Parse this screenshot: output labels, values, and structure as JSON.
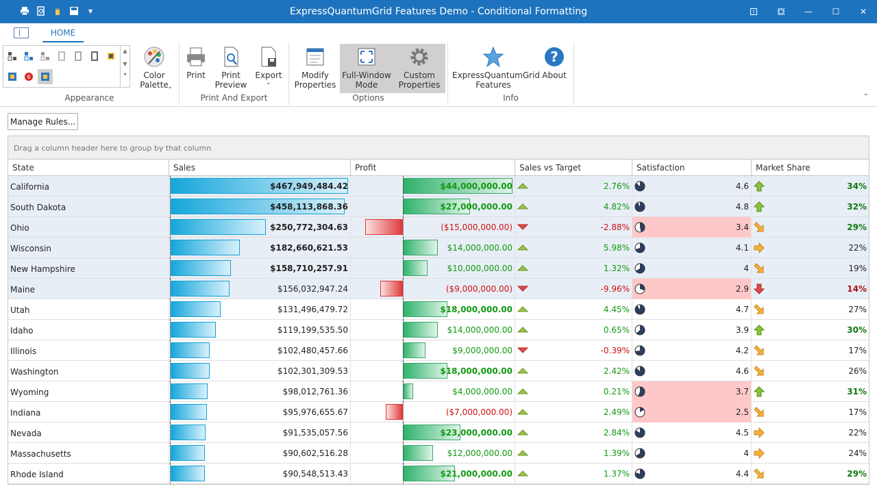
{
  "window": {
    "title": "ExpressQuantumGrid Features Demo -  Conditional Formatting"
  },
  "ribbon": {
    "tab_home": "HOME",
    "groups": {
      "appearance": "Appearance",
      "print_export": "Print And Export",
      "options": "Options",
      "info": "Info"
    },
    "buttons": {
      "color_palette": "Color\nPalette",
      "print": "Print",
      "print_preview": "Print\nPreview",
      "export": "Export",
      "modify_properties": "Modify\nProperties",
      "full_window_mode": "Full-Window\nMode",
      "custom_properties": "Custom\nProperties",
      "eqg_features": "ExpressQuantumGrid\nFeatures",
      "about": "About"
    }
  },
  "manage_rules_label": "Manage Rules...",
  "grid": {
    "group_panel_text": "Drag a column header here to group by that column",
    "columns": [
      "State",
      "Sales",
      "Profit",
      "Sales vs Target",
      "Satisfaction",
      "Market Share"
    ],
    "rows": [
      {
        "state": "California",
        "sales": "$467,949,484.42",
        "sales_num": 467949484.42,
        "sales_bold": true,
        "profit": "$44,000,000.00",
        "profit_num": 44000000,
        "profit_bold": true,
        "svt": "2.76%",
        "svt_dir": "up",
        "sat": "4.6",
        "sat_num": 4.6,
        "sat_bad": false,
        "ms": "34%",
        "ms_icon": "up",
        "ms_style": "green",
        "highlight": true
      },
      {
        "state": "South Dakota",
        "sales": "$458,113,868.36",
        "sales_num": 458113868.36,
        "sales_bold": true,
        "profit": "$27,000,000.00",
        "profit_num": 27000000,
        "profit_bold": true,
        "svt": "4.82%",
        "svt_dir": "up",
        "sat": "4.8",
        "sat_num": 4.8,
        "sat_bad": false,
        "ms": "32%",
        "ms_icon": "up",
        "ms_style": "green",
        "highlight": true
      },
      {
        "state": "Ohio",
        "sales": "$250,772,304.63",
        "sales_num": 250772304.63,
        "sales_bold": true,
        "profit": "($15,000,000.00)",
        "profit_num": -15000000,
        "profit_bold": false,
        "svt": "-2.88%",
        "svt_dir": "down",
        "sat": "3.4",
        "sat_num": 3.4,
        "sat_bad": true,
        "ms": "29%",
        "ms_icon": "downright",
        "ms_style": "green",
        "highlight": true
      },
      {
        "state": "Wisconsin",
        "sales": "$182,660,621.53",
        "sales_num": 182660621.53,
        "sales_bold": true,
        "profit": "$14,000,000.00",
        "profit_num": 14000000,
        "profit_bold": false,
        "svt": "5.98%",
        "svt_dir": "up",
        "sat": "4.1",
        "sat_num": 4.1,
        "sat_bad": false,
        "ms": "22%",
        "ms_icon": "right",
        "ms_style": "normal",
        "highlight": true
      },
      {
        "state": "New Hampshire",
        "sales": "$158,710,257.91",
        "sales_num": 158710257.91,
        "sales_bold": true,
        "profit": "$10,000,000.00",
        "profit_num": 10000000,
        "profit_bold": false,
        "svt": "1.32%",
        "svt_dir": "up",
        "sat": "4",
        "sat_num": 4.0,
        "sat_bad": false,
        "ms": "19%",
        "ms_icon": "downright",
        "ms_style": "normal",
        "highlight": true
      },
      {
        "state": "Maine",
        "sales": "$156,032,947.24",
        "sales_num": 156032947.24,
        "sales_bold": false,
        "profit": "($9,000,000.00)",
        "profit_num": -9000000,
        "profit_bold": false,
        "svt": "-9.96%",
        "svt_dir": "down",
        "sat": "2.9",
        "sat_num": 2.9,
        "sat_bad": true,
        "ms": "14%",
        "ms_icon": "down",
        "ms_style": "red",
        "highlight": true
      },
      {
        "state": "Utah",
        "sales": "$131,496,479.72",
        "sales_num": 131496479.72,
        "sales_bold": false,
        "profit": "$18,000,000.00",
        "profit_num": 18000000,
        "profit_bold": true,
        "svt": "4.45%",
        "svt_dir": "up",
        "sat": "4.7",
        "sat_num": 4.7,
        "sat_bad": false,
        "ms": "27%",
        "ms_icon": "downright",
        "ms_style": "normal",
        "highlight": false
      },
      {
        "state": "Idaho",
        "sales": "$119,199,535.50",
        "sales_num": 119199535.5,
        "sales_bold": false,
        "profit": "$14,000,000.00",
        "profit_num": 14000000,
        "profit_bold": false,
        "svt": "0.65%",
        "svt_dir": "up",
        "sat": "3.9",
        "sat_num": 3.9,
        "sat_bad": false,
        "ms": "30%",
        "ms_icon": "up",
        "ms_style": "green",
        "highlight": false
      },
      {
        "state": "Illinois",
        "sales": "$102,480,457.66",
        "sales_num": 102480457.66,
        "sales_bold": false,
        "profit": "$9,000,000.00",
        "profit_num": 9000000,
        "profit_bold": false,
        "svt": "-0.39%",
        "svt_dir": "down",
        "sat": "4.2",
        "sat_num": 4.2,
        "sat_bad": false,
        "ms": "17%",
        "ms_icon": "downright",
        "ms_style": "normal",
        "highlight": false
      },
      {
        "state": "Washington",
        "sales": "$102,301,309.53",
        "sales_num": 102301309.53,
        "sales_bold": false,
        "profit": "$18,000,000.00",
        "profit_num": 18000000,
        "profit_bold": true,
        "svt": "2.42%",
        "svt_dir": "up",
        "sat": "4.6",
        "sat_num": 4.6,
        "sat_bad": false,
        "ms": "26%",
        "ms_icon": "downright",
        "ms_style": "normal",
        "highlight": false
      },
      {
        "state": "Wyoming",
        "sales": "$98,012,761.36",
        "sales_num": 98012761.36,
        "sales_bold": false,
        "profit": "$4,000,000.00",
        "profit_num": 4000000,
        "profit_bold": false,
        "svt": "0.21%",
        "svt_dir": "up",
        "sat": "3.7",
        "sat_num": 3.7,
        "sat_bad": true,
        "ms": "31%",
        "ms_icon": "up",
        "ms_style": "green",
        "highlight": false
      },
      {
        "state": "Indiana",
        "sales": "$95,976,655.67",
        "sales_num": 95976655.67,
        "sales_bold": false,
        "profit": "($7,000,000.00)",
        "profit_num": -7000000,
        "profit_bold": false,
        "svt": "2.49%",
        "svt_dir": "up",
        "sat": "2.5",
        "sat_num": 2.5,
        "sat_bad": true,
        "ms": "17%",
        "ms_icon": "downright",
        "ms_style": "normal",
        "highlight": false
      },
      {
        "state": "Nevada",
        "sales": "$91,535,057.56",
        "sales_num": 91535057.56,
        "sales_bold": false,
        "profit": "$23,000,000.00",
        "profit_num": 23000000,
        "profit_bold": true,
        "svt": "2.84%",
        "svt_dir": "up",
        "sat": "4.5",
        "sat_num": 4.5,
        "sat_bad": false,
        "ms": "22%",
        "ms_icon": "right",
        "ms_style": "normal",
        "highlight": false
      },
      {
        "state": "Massachusetts",
        "sales": "$90,602,516.28",
        "sales_num": 90602516.28,
        "sales_bold": false,
        "profit": "$12,000,000.00",
        "profit_num": 12000000,
        "profit_bold": false,
        "svt": "1.39%",
        "svt_dir": "up",
        "sat": "4",
        "sat_num": 4.0,
        "sat_bad": false,
        "ms": "24%",
        "ms_icon": "right",
        "ms_style": "normal",
        "highlight": false
      },
      {
        "state": "Rhode Island",
        "sales": "$90,548,513.43",
        "sales_num": 90548513.43,
        "sales_bold": false,
        "profit": "$21,000,000.00",
        "profit_num": 21000000,
        "profit_bold": true,
        "svt": "1.37%",
        "svt_dir": "up",
        "sat": "4.4",
        "sat_num": 4.4,
        "sat_bad": false,
        "ms": "29%",
        "ms_icon": "downright",
        "ms_style": "green",
        "highlight": false
      }
    ]
  },
  "colors": {
    "titlebar": "#1e73be",
    "sales_bar": "#16a6db",
    "profit_pos": "#2fb26b",
    "profit_neg": "#e03b3b",
    "sat_bad_bg": "#ffc8c8"
  }
}
